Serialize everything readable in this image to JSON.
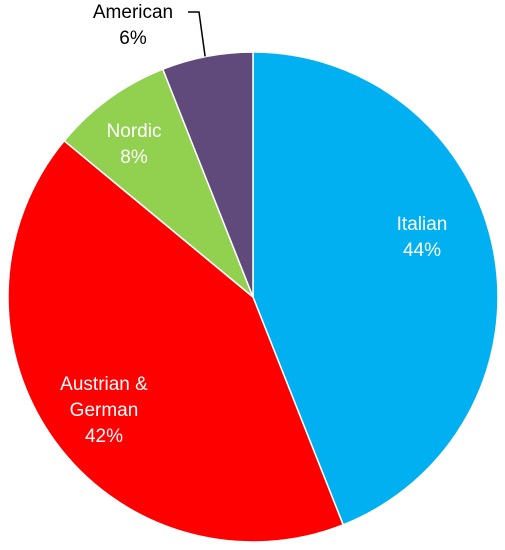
{
  "chart_data": {
    "type": "pie",
    "title": "",
    "legend": "none",
    "slices": [
      {
        "label": "Italian",
        "value": 44,
        "value_label": "44%",
        "color": "#00B0F0",
        "label_position": "inside"
      },
      {
        "label": "Austrian & German",
        "value": 42,
        "value_label": "42%",
        "color": "#FF0000",
        "label_position": "inside"
      },
      {
        "label": "Nordic",
        "value": 8,
        "value_label": "8%",
        "color": "#92D050",
        "label_position": "inside"
      },
      {
        "label": "American",
        "value": 6,
        "value_label": "6%",
        "color": "#604A7B",
        "label_position": "outside"
      }
    ]
  }
}
